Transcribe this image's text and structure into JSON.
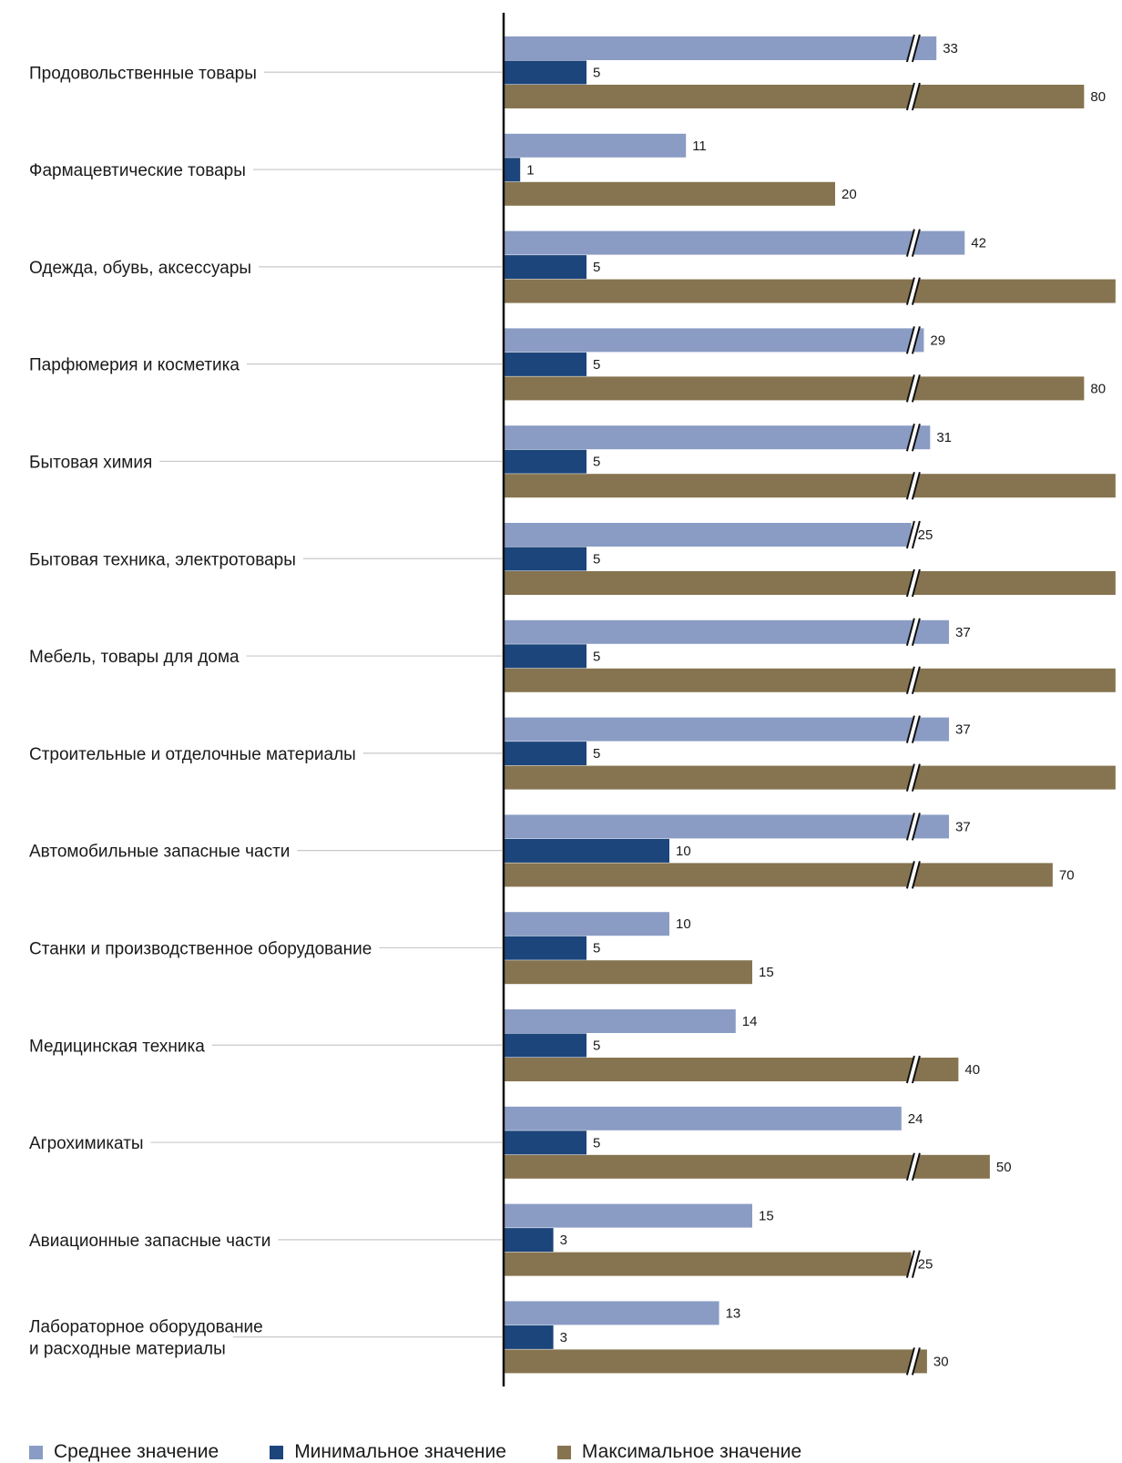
{
  "chart_data": {
    "type": "bar",
    "orientation": "horizontal",
    "axis_breaks": true,
    "categories": [
      "Продовольственные товары",
      "Фармацевтические товары",
      "Одежда, обувь, аксессуары",
      "Парфюмерия и косметика",
      "Бытовая химия",
      "Бытовая техника, электротовары",
      "Мебель, товары для дома",
      "Строительные и отделочные материалы",
      "Автомобильные запасные части",
      "Станки и производственное оборудование",
      "Медицинская техника",
      "Агрохимикаты",
      "Авиационные запасные части",
      "Лабораторное оборудование\nи расходные материалы"
    ],
    "series": [
      {
        "name": "Среднее значение",
        "color": "#8a9cc4",
        "values": [
          33,
          11,
          42,
          29,
          31,
          25,
          37,
          37,
          37,
          10,
          14,
          24,
          15,
          13
        ]
      },
      {
        "name": "Минимальное значение",
        "color": "#1c457b",
        "values": [
          5,
          1,
          5,
          5,
          5,
          5,
          5,
          5,
          10,
          5,
          5,
          5,
          3,
          3
        ]
      },
      {
        "name": "Максимальное значение",
        "color": "#867450",
        "values": [
          80,
          20,
          90,
          80,
          90,
          90,
          90,
          90,
          70,
          15,
          40,
          50,
          25,
          30
        ]
      }
    ],
    "legend_position": "bottom",
    "grid": false
  }
}
